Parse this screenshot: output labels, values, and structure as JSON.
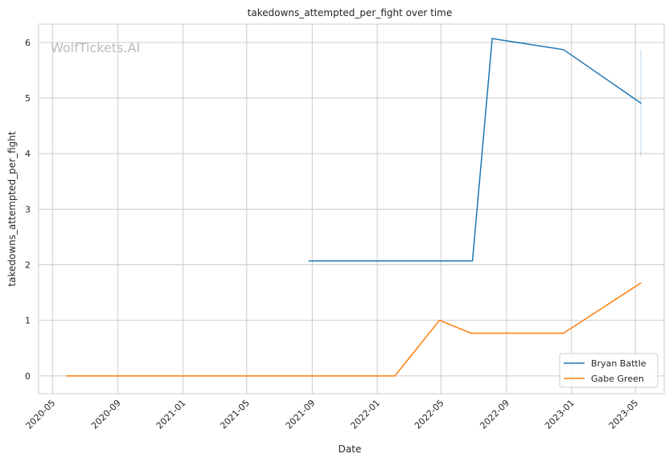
{
  "chart_data": {
    "type": "line",
    "title": "takedowns_attempted_per_fight over time",
    "xlabel": "Date",
    "ylabel": "takedowns_attempted_per_fight",
    "watermark": "WolfTickets.AI",
    "xlim": [
      "2020-04-05",
      "2023-06-24"
    ],
    "ylim": [
      -0.32,
      6.33
    ],
    "x_ticks": [
      "2020-05",
      "2020-09",
      "2021-01",
      "2021-05",
      "2021-09",
      "2022-01",
      "2022-05",
      "2022-09",
      "2023-01",
      "2023-05"
    ],
    "y_ticks": [
      0,
      1,
      2,
      3,
      4,
      5,
      6
    ],
    "grid": true,
    "legend_position": "bottom-right",
    "series": [
      {
        "name": "Bryan Battle",
        "color": "#1f77b4",
        "x": [
          "2021-08-26",
          "2022-06-29",
          "2022-08-05",
          "2022-12-17",
          "2023-05-11"
        ],
        "y": [
          2.07,
          2.07,
          6.07,
          5.87,
          4.91
        ],
        "band": {
          "x": "2023-05-11",
          "low": 3.95,
          "high": 5.87
        }
      },
      {
        "name": "Gabe Green",
        "color": "#ff7f0e",
        "x": [
          "2020-05-28",
          "2022-02-03",
          "2022-04-28",
          "2022-06-26",
          "2022-12-17",
          "2023-05-11"
        ],
        "y": [
          0,
          0,
          1.0,
          0.77,
          0.77,
          1.67
        ]
      }
    ]
  }
}
